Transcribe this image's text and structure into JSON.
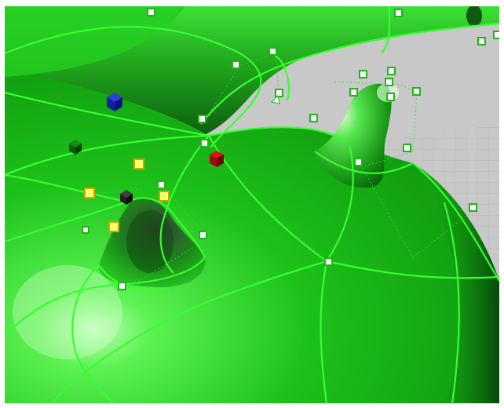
{
  "viewport": {
    "name": "perspective-viewport",
    "background_color": "#c8c8c8",
    "surface_color": "#22c81e",
    "curve_color": "#35ff2e"
  },
  "control_points": {
    "normal_fill": "#ffffff",
    "normal_stroke": "#1db51a",
    "selected_fill": "#ffff70",
    "selected_stroke": "#c8a800"
  },
  "gizmo_cubes": [
    {
      "name": "blue-manipulator-cube",
      "color": "#1020a0"
    },
    {
      "name": "green-manipulator-cube",
      "color": "#0a5a0a"
    },
    {
      "name": "red-manipulator-cube",
      "color": "#a00a0a"
    },
    {
      "name": "dark-manipulator-cube",
      "color": "#202020"
    }
  ]
}
